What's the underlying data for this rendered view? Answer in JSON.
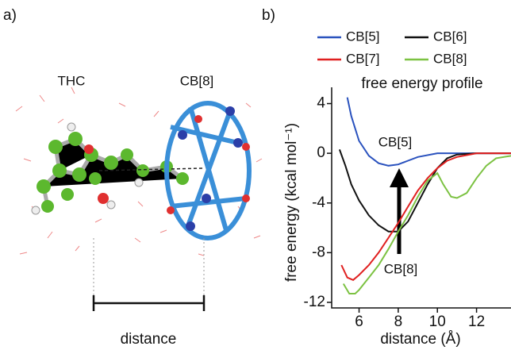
{
  "panel_a": {
    "label": "a)",
    "molecule_left": "THC",
    "molecule_right": "CB[8]",
    "axis_label": "distance"
  },
  "chart_data": {
    "type": "line",
    "panel_label": "b)",
    "title": "free energy profile",
    "x_label": "distance (Å)",
    "y_label": "free energy (kcal mol⁻¹)",
    "xlim": [
      4.6,
      13.76
    ],
    "ylim": [
      -12.45,
      4.8
    ],
    "xticks": [
      6,
      8,
      10,
      12
    ],
    "yticks": [
      4,
      0,
      -4,
      -8,
      -12
    ],
    "annotations": [
      "CB[5]",
      "CB[8]"
    ],
    "series": [
      {
        "name": "CB[5]",
        "color": "#2a52be",
        "x": [
          5.4,
          5.6,
          6,
          6.5,
          7,
          7.5,
          8,
          8.5,
          9,
          10,
          11,
          12,
          13.76
        ],
        "values": [
          4.5,
          3,
          1,
          -0.2,
          -0.8,
          -1.0,
          -0.9,
          -0.6,
          -0.3,
          0,
          0,
          0,
          0
        ]
      },
      {
        "name": "CB[6]",
        "color": "#111111",
        "x": [
          5,
          5.3,
          5.6,
          6,
          6.5,
          7,
          7.5,
          8,
          8.5,
          9,
          9.5,
          10,
          10.5,
          11,
          12,
          13.76
        ],
        "values": [
          0.3,
          -1,
          -2.5,
          -3.8,
          -5,
          -5.8,
          -6.3,
          -6.3,
          -5.5,
          -4,
          -2.5,
          -1.2,
          -0.4,
          -0.1,
          0,
          0
        ]
      },
      {
        "name": "CB[7]",
        "color": "#e02020",
        "x": [
          5.1,
          5.4,
          5.7,
          6,
          6.5,
          7,
          7.5,
          8,
          8.5,
          9,
          9.5,
          10,
          10.5,
          11,
          12,
          13.76
        ],
        "values": [
          -9,
          -10,
          -10.2,
          -9.8,
          -9,
          -8,
          -6.8,
          -5.6,
          -4.3,
          -3,
          -2,
          -1.2,
          -0.6,
          -0.3,
          0,
          0
        ]
      },
      {
        "name": "CB[8]",
        "color": "#7cc242",
        "x": [
          5.2,
          5.5,
          5.8,
          6,
          6.5,
          7,
          7.5,
          8,
          8.5,
          9,
          9.5,
          10,
          10.3,
          10.7,
          11,
          11.5,
          12,
          12.5,
          13,
          13.76
        ],
        "values": [
          -10.5,
          -11.3,
          -11.3,
          -11,
          -10,
          -9,
          -7.7,
          -6.3,
          -5,
          -3.5,
          -2.2,
          -1.6,
          -2.5,
          -3.5,
          -3.6,
          -3.2,
          -2,
          -1,
          -0.4,
          -0.2
        ]
      }
    ]
  }
}
